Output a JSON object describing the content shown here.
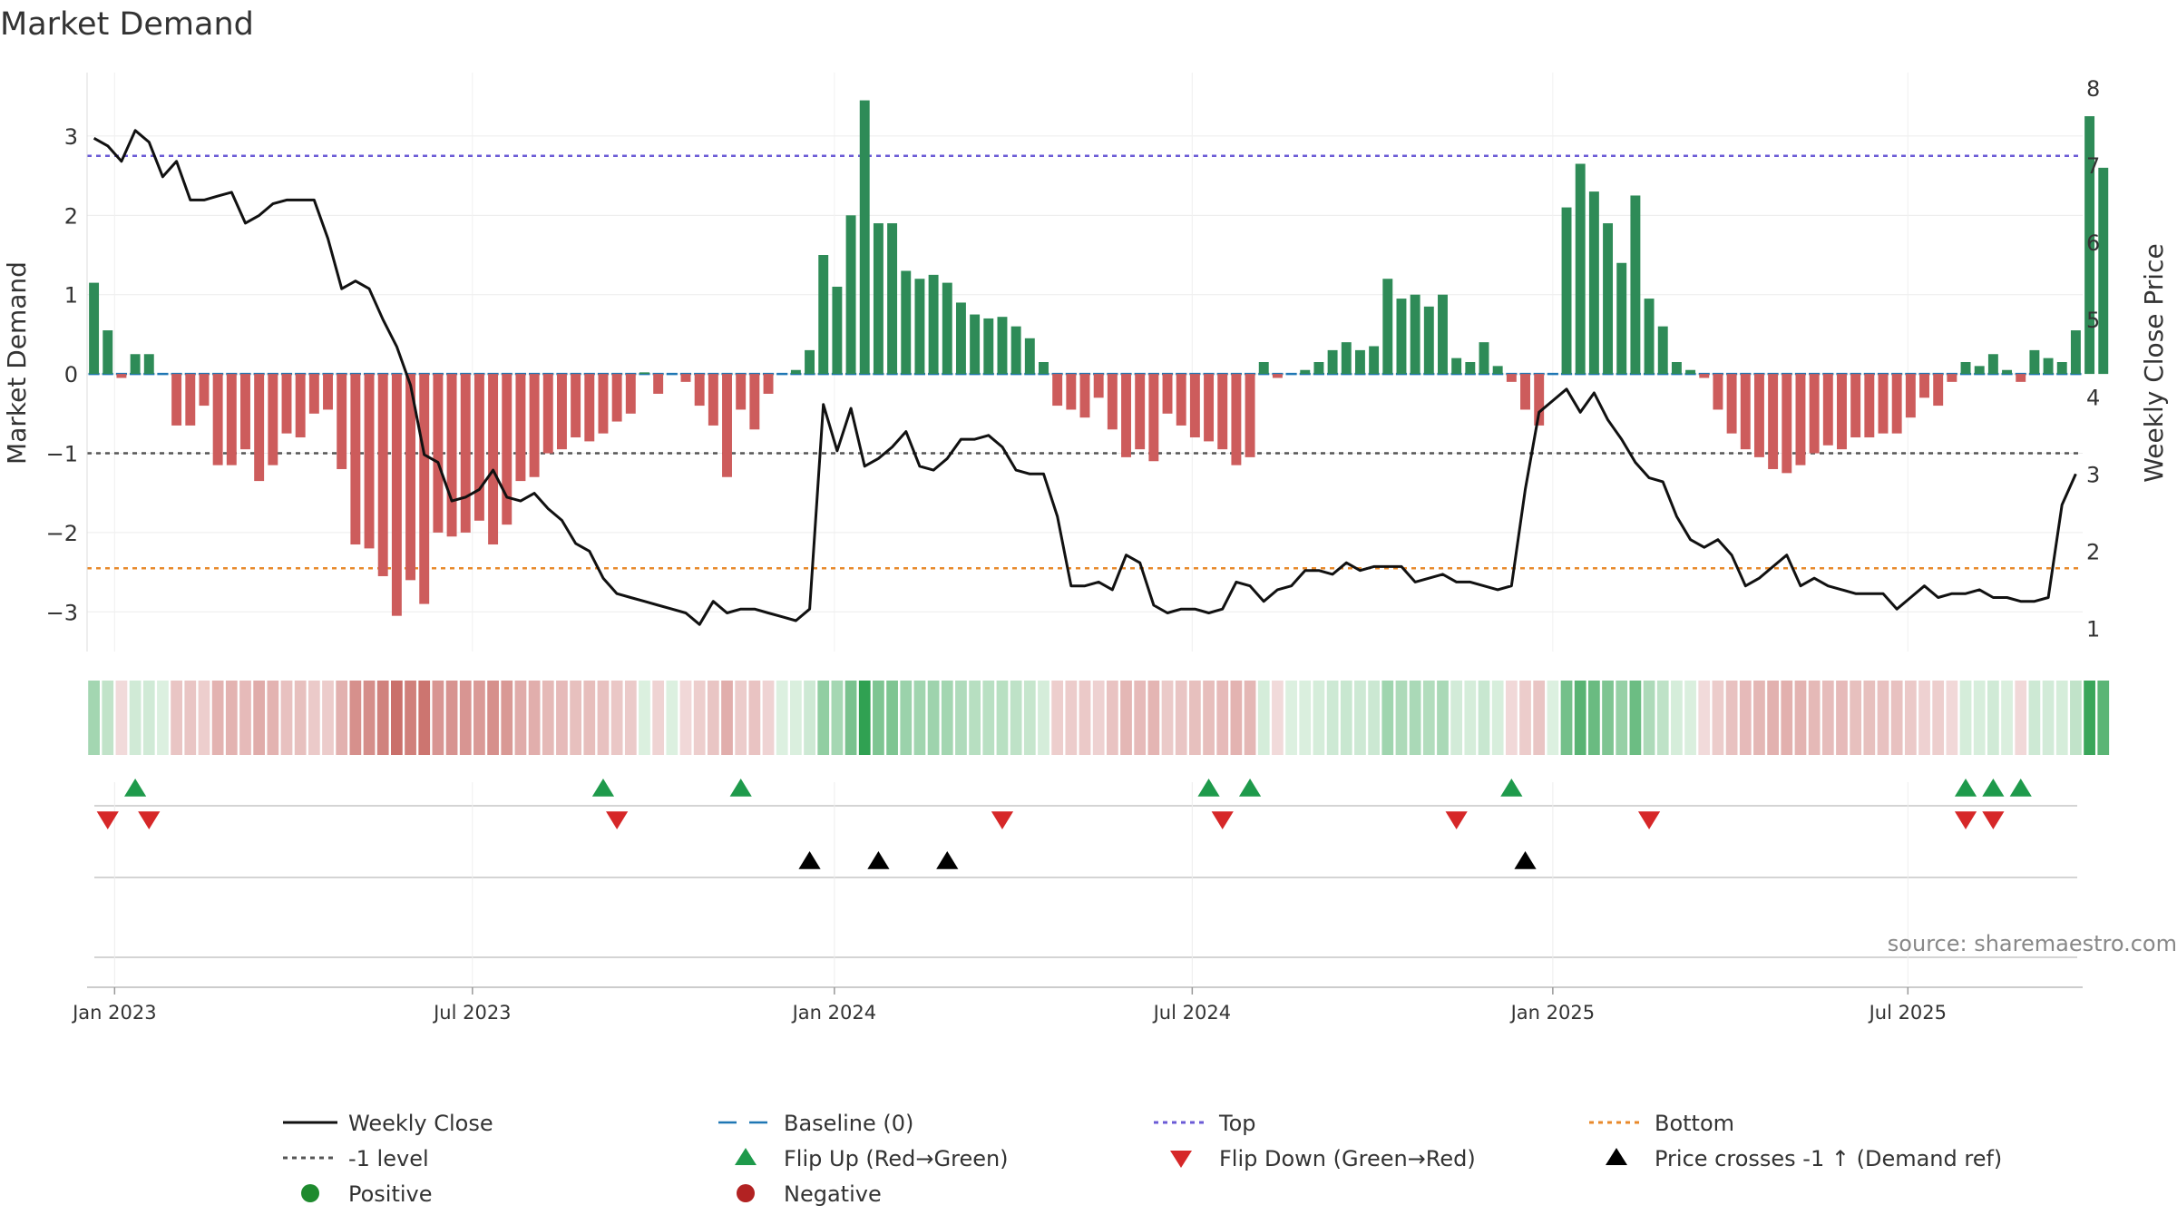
{
  "chart_data": {
    "type": "bar+line",
    "title": "Market Demand",
    "ylabel_left": "Market Demand",
    "ylabel_right": "Weekly Close Price",
    "ylim_left": [
      -3.5,
      3.8
    ],
    "ylim_right": [
      0.7,
      8.2
    ],
    "yticks_left": [
      3,
      2,
      1,
      0,
      -1,
      -2,
      -3
    ],
    "ytick_labels_left": [
      "3",
      "2",
      "1",
      "0",
      "−1",
      "−2",
      "−3"
    ],
    "yticks_right": [
      1,
      2,
      3,
      4,
      5,
      6,
      7,
      8
    ],
    "ytick_labels_right": [
      "1",
      "2",
      "3",
      "4",
      "5",
      "6",
      "7",
      "8"
    ],
    "x_start": "2022-12-26",
    "week_count": 145,
    "x_ticks": [
      {
        "label": "Jan 2023",
        "week": 1.5
      },
      {
        "label": "Jul 2023",
        "week": 27.5
      },
      {
        "label": "Jan 2024",
        "week": 53.8
      },
      {
        "label": "Jul 2024",
        "week": 79.8
      },
      {
        "label": "Jan 2025",
        "week": 106.0
      },
      {
        "label": "Jul 2025",
        "week": 131.8
      }
    ],
    "reference_lines": {
      "top": 2.75,
      "bottom": -2.45,
      "minus_one": -1,
      "baseline": 0
    },
    "series": [
      {
        "name": "Market Demand",
        "kind": "bar",
        "values": [
          1.15,
          0.55,
          -0.05,
          0.25,
          0.25,
          0,
          -0.65,
          -0.65,
          -0.4,
          -1.15,
          -1.15,
          -0.95,
          -1.35,
          -1.15,
          -0.75,
          -0.8,
          -0.5,
          -0.45,
          -1.2,
          -2.15,
          -2.2,
          -2.55,
          -3.05,
          -2.6,
          -2.9,
          -2,
          -2.05,
          -2,
          -1.85,
          -2.15,
          -1.9,
          -1.35,
          -1.3,
          -1.0,
          -0.95,
          -0.8,
          -0.85,
          -0.75,
          -0.6,
          -0.5,
          0.02,
          -0.25,
          0,
          -0.1,
          -0.4,
          -0.65,
          -1.3,
          -0.45,
          -0.7,
          -0.25,
          0,
          0.05,
          0.3,
          1.5,
          1.1,
          2,
          3.45,
          1.9,
          1.9,
          1.3,
          1.2,
          1.25,
          1.15,
          0.9,
          0.75,
          0.7,
          0.72,
          0.6,
          0.45,
          0.15,
          -0.4,
          -0.45,
          -0.55,
          -0.3,
          -0.7,
          -1.05,
          -0.95,
          -1.1,
          -0.5,
          -0.65,
          -0.8,
          -0.85,
          -0.95,
          -1.15,
          -1.05,
          0.15,
          -0.05,
          0,
          0.05,
          0.15,
          0.3,
          0.4,
          0.3,
          0.35,
          1.2,
          0.95,
          1.0,
          0.85,
          1.0,
          0.2,
          0.15,
          0.4,
          0.1,
          -0.1,
          -0.45,
          -0.65,
          0,
          2.1,
          2.65,
          2.3,
          1.9,
          1.4,
          2.25,
          0.95,
          0.6,
          0.15,
          0.05,
          -0.05,
          -0.45,
          -0.75,
          -0.95,
          -1.05,
          -1.2,
          -1.25,
          -1.15,
          -1,
          -0.9,
          -0.95,
          -0.8,
          -0.8,
          -0.75,
          -0.75,
          -0.55,
          -0.3,
          -0.4,
          -0.1,
          0.15,
          0.1,
          0.25,
          0.05,
          -0.1,
          0.3,
          0.2,
          0.15,
          0.55,
          3.25,
          2.6
        ]
      },
      {
        "name": "Weekly Close",
        "kind": "line",
        "values": [
          7.35,
          7.25,
          7.05,
          7.45,
          7.3,
          6.85,
          7.05,
          6.55,
          6.55,
          6.6,
          6.65,
          6.25,
          6.35,
          6.5,
          6.55,
          6.55,
          6.55,
          6.05,
          5.4,
          5.5,
          5.4,
          5,
          4.65,
          4.15,
          3.25,
          3.15,
          2.65,
          2.7,
          2.8,
          3.05,
          2.7,
          2.65,
          2.75,
          2.55,
          2.4,
          2.1,
          2.0,
          1.65,
          1.45,
          1.4,
          1.35,
          1.3,
          1.25,
          1.2,
          1.05,
          1.35,
          1.2,
          1.25,
          1.25,
          1.2,
          1.15,
          1.1,
          1.25,
          3.9,
          3.3,
          3.85,
          3.1,
          3.2,
          3.35,
          3.55,
          3.1,
          3.05,
          3.2,
          3.45,
          3.45,
          3.5,
          3.35,
          3.05,
          3.0,
          3.0,
          2.45,
          1.55,
          1.55,
          1.6,
          1.5,
          1.95,
          1.85,
          1.3,
          1.2,
          1.25,
          1.25,
          1.2,
          1.25,
          1.6,
          1.55,
          1.35,
          1.5,
          1.55,
          1.75,
          1.75,
          1.7,
          1.85,
          1.75,
          1.8,
          1.8,
          1.8,
          1.6,
          1.65,
          1.7,
          1.6,
          1.6,
          1.55,
          1.5,
          1.55,
          2.8,
          3.8,
          3.95,
          4.1,
          3.8,
          4.05,
          3.7,
          3.45,
          3.15,
          2.95,
          2.9,
          2.45,
          2.15,
          2.05,
          2.15,
          1.95,
          1.55,
          1.65,
          1.8,
          1.95,
          1.55,
          1.65,
          1.55,
          1.5,
          1.45,
          1.45,
          1.45,
          1.25,
          1.4,
          1.55,
          1.4,
          1.45,
          1.45,
          1.5,
          1.4,
          1.4,
          1.35,
          1.35,
          1.4,
          2.6,
          3.0
        ]
      }
    ],
    "heat_strip": {
      "label": "Demand colour strip",
      "values_from": "Market Demand"
    },
    "events": {
      "flip_up_weeks": [
        3,
        37,
        47,
        81,
        84,
        103,
        136,
        138,
        140
      ],
      "flip_down_weeks": [
        1,
        4,
        38,
        66,
        82,
        99,
        113,
        136,
        138
      ],
      "price_cross_weeks": [
        52,
        57,
        62,
        104
      ]
    },
    "legend": [
      {
        "label": "Weekly Close",
        "symbol": "line",
        "color": "#111111"
      },
      {
        "label": "Baseline (0)",
        "symbol": "dash",
        "color": "#1f77b4"
      },
      {
        "label": "Top",
        "symbol": "dot",
        "color": "#6b5bd6"
      },
      {
        "label": "Bottom",
        "symbol": "dot",
        "color": "#e8892b"
      },
      {
        "label": "-1 level",
        "symbol": "dot",
        "color": "#555555"
      },
      {
        "label": "Flip Up (Red→Green)",
        "symbol": "tri-up",
        "color": "#1e9a4b"
      },
      {
        "label": "Flip Down (Green→Red)",
        "symbol": "tri-down",
        "color": "#d62728"
      },
      {
        "label": "Price crosses -1 ↑ (Demand ref)",
        "symbol": "tri-up",
        "color": "#000000"
      },
      {
        "label": "Positive",
        "symbol": "circle",
        "color": "#1e8a2e"
      },
      {
        "label": "Negative",
        "symbol": "circle",
        "color": "#b22222"
      }
    ],
    "source": "source: sharemaestro.com"
  },
  "colors": {
    "positive_bar": "#2e8b57",
    "negative_bar": "#cd5c5c",
    "line": "#111111",
    "top": "#6b5bd6",
    "bottom": "#e8892b",
    "minus_one": "#555555",
    "baseline": "#1f77b4"
  }
}
